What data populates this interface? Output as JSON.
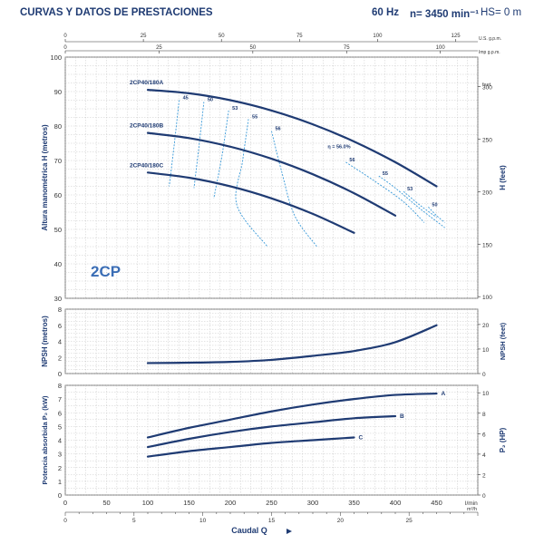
{
  "header": {
    "title": "CURVAS Y DATOS DE PRESTACIONES",
    "frequency": "60 Hz",
    "speed": "n= 3450 min⁻¹",
    "hs": "HS= 0 m"
  },
  "colors": {
    "curve": "#1f3b73",
    "efficiency": "#3a9ad9",
    "grid": "#bbbbbb",
    "text": "#1f3b73"
  },
  "chart_data": [
    {
      "id": "head",
      "type": "line",
      "title": "2CP",
      "ylabel": "Altura manométrica H (metros)",
      "ylabel_right": "H (feet)",
      "xlim": [
        0,
        500
      ],
      "ylim": [
        30,
        100
      ],
      "yticks": [
        30,
        40,
        50,
        60,
        70,
        80,
        90,
        100
      ],
      "yticks_right": [
        100,
        150,
        200,
        250,
        300
      ],
      "yunit_right": "feet",
      "top_gpm_ticks": [
        0,
        25,
        50,
        75,
        100,
        125
      ],
      "top_gpm_unit": "U.S. g.p.m.",
      "top_imp_ticks": [
        0,
        25,
        50,
        75,
        100
      ],
      "top_imp_unit": "Imp g.p.m.",
      "series": [
        {
          "name": "2CP40/180A",
          "x": [
            100,
            150,
            200,
            250,
            300,
            350,
            400,
            450
          ],
          "y": [
            90.5,
            89.5,
            87.5,
            84.5,
            80.5,
            75.5,
            69.5,
            62.5
          ]
        },
        {
          "name": "2CP40/180B",
          "x": [
            100,
            150,
            200,
            250,
            300,
            350,
            400
          ],
          "y": [
            78,
            76.5,
            74,
            70.5,
            66,
            60.5,
            54
          ]
        },
        {
          "name": "2CP40/180C",
          "x": [
            100,
            150,
            200,
            250,
            300,
            350
          ],
          "y": [
            66.5,
            65,
            62.5,
            59,
            54.5,
            49
          ]
        }
      ],
      "efficiency_lines": [
        {
          "label": "45",
          "x": [
            138,
            132,
            126
          ],
          "y": [
            87.5,
            74.5,
            62.5
          ]
        },
        {
          "label": "50",
          "x": [
            168,
            162,
            156
          ],
          "y": [
            87,
            74,
            62
          ]
        },
        {
          "label": "53",
          "x": [
            198,
            190,
            180
          ],
          "y": [
            84.5,
            71.5,
            59
          ]
        },
        {
          "label": "55",
          "x": [
            222,
            215,
            208,
            245
          ],
          "y": [
            82,
            70,
            57,
            45
          ]
        },
        {
          "label": "56",
          "x": [
            250,
            262,
            278,
            305
          ],
          "y": [
            78.5,
            67,
            54,
            45
          ]
        },
        {
          "label": "56",
          "x": [
            340,
            375,
            410,
            435
          ],
          "y": [
            69.5,
            64,
            58,
            52
          ]
        },
        {
          "label": "55",
          "x": [
            380,
            400,
            430,
            460
          ],
          "y": [
            65.5,
            62,
            56,
            50.5
          ]
        },
        {
          "label": "53",
          "x": [
            410,
            430,
            450
          ],
          "y": [
            61,
            57,
            53.5
          ]
        },
        {
          "label": "50",
          "x": [
            440,
            450,
            460
          ],
          "y": [
            56.5,
            54,
            52
          ]
        }
      ],
      "efficiency_label": "η = 56.0%"
    },
    {
      "id": "npsh",
      "type": "line",
      "ylabel": "NPSH (metros)",
      "ylabel_right": "NPSH (feet)",
      "xlim": [
        0,
        500
      ],
      "ylim": [
        0,
        8
      ],
      "yticks": [
        0,
        2,
        4,
        6,
        8
      ],
      "yticks_right": [
        0,
        10,
        20
      ],
      "series": [
        {
          "name": "NPSH",
          "x": [
            100,
            150,
            200,
            250,
            300,
            350,
            400,
            450
          ],
          "y": [
            1.3,
            1.35,
            1.45,
            1.7,
            2.2,
            2.8,
            3.9,
            6.0
          ]
        }
      ]
    },
    {
      "id": "power",
      "type": "line",
      "ylabel": "Potencia absorbida P₂ (kW)",
      "ylabel_right": "P₂ (HP)",
      "xlim": [
        0,
        500
      ],
      "ylim": [
        0,
        8
      ],
      "yticks": [
        0,
        1,
        2,
        3,
        4,
        5,
        6,
        7,
        8
      ],
      "yticks_right": [
        0,
        2,
        4,
        6,
        8,
        10
      ],
      "series": [
        {
          "name": "A",
          "x": [
            100,
            150,
            200,
            250,
            300,
            350,
            400,
            450
          ],
          "y": [
            4.2,
            4.9,
            5.5,
            6.1,
            6.6,
            7.0,
            7.3,
            7.4
          ]
        },
        {
          "name": "B",
          "x": [
            100,
            150,
            200,
            250,
            300,
            350,
            400
          ],
          "y": [
            3.5,
            4.1,
            4.6,
            5.0,
            5.3,
            5.6,
            5.75
          ]
        },
        {
          "name": "C",
          "x": [
            100,
            150,
            200,
            250,
            300,
            350
          ],
          "y": [
            2.8,
            3.2,
            3.5,
            3.8,
            4.0,
            4.2
          ]
        }
      ],
      "xlabel": "Caudal Q",
      "xticks": [
        0,
        50,
        100,
        150,
        200,
        250,
        300,
        350,
        400,
        450
      ],
      "xunit": "l/min",
      "m3h_ticks": [
        0,
        5,
        10,
        15,
        20,
        25
      ],
      "m3h_unit": "m³/h"
    }
  ]
}
